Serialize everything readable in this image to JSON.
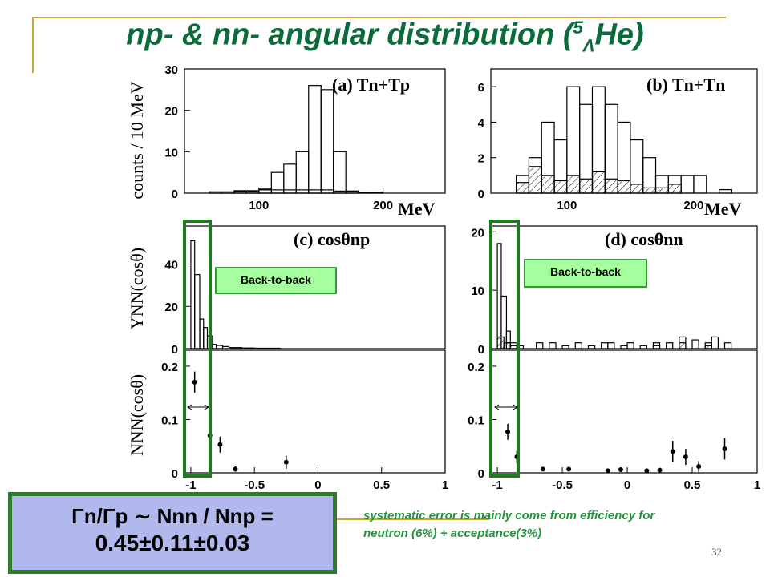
{
  "title": {
    "pre": "np- & nn- angular distribution  (",
    "sup": "5",
    "sub": "Λ",
    "post": "He)"
  },
  "colors": {
    "title": "#0c6b3a",
    "highlight_box": "#1f7a1f",
    "callout_fill": "#a6ff9f",
    "formula_fill": "#b1b8ec",
    "note_text": "#22953a",
    "decoration": "#c9a63a"
  },
  "chart_data": [
    {
      "id": "a",
      "type": "histogram",
      "label": "(a) Tn+Tp",
      "ylabel": "counts / 10 MeV",
      "xlabel": "MeV",
      "xlim": [
        40,
        250
      ],
      "ylim": [
        0,
        30
      ],
      "xticks": [
        100,
        200
      ],
      "yticks": [
        0,
        10,
        20,
        30
      ],
      "series": [
        {
          "bins": [
            [
              60,
              70,
              0.3
            ],
            [
              70,
              80,
              0.3
            ],
            [
              80,
              90,
              0.6
            ],
            [
              90,
              100,
              0.6
            ],
            [
              100,
              110,
              1
            ],
            [
              110,
              120,
              5
            ],
            [
              120,
              130,
              7
            ],
            [
              130,
              140,
              10
            ],
            [
              140,
              150,
              26
            ],
            [
              150,
              160,
              25
            ],
            [
              160,
              170,
              10
            ],
            [
              170,
              180,
              0.5
            ],
            [
              180,
              190,
              0.2
            ],
            [
              190,
              200,
              0.2
            ]
          ],
          "hatched": false
        },
        {
          "bins": [
            [
              60,
              80,
              0.3
            ],
            [
              80,
              100,
              0.5
            ],
            [
              100,
              120,
              0.8
            ],
            [
              120,
              140,
              0.8
            ],
            [
              140,
              160,
              0.8
            ],
            [
              160,
              180,
              0.5
            ]
          ],
          "hatched": false
        }
      ]
    },
    {
      "id": "b",
      "type": "histogram",
      "label": "(b) Tn+Tn",
      "xlabel": "MeV",
      "xlim": [
        40,
        250
      ],
      "ylim": [
        0,
        7
      ],
      "xticks": [
        100,
        200
      ],
      "yticks": [
        0,
        2,
        4,
        6
      ],
      "series": [
        {
          "bins": [
            [
              60,
              70,
              1
            ],
            [
              70,
              80,
              2
            ],
            [
              80,
              90,
              4
            ],
            [
              90,
              100,
              3
            ],
            [
              100,
              110,
              6
            ],
            [
              110,
              120,
              5
            ],
            [
              120,
              130,
              6
            ],
            [
              130,
              140,
              5
            ],
            [
              140,
              150,
              4
            ],
            [
              150,
              160,
              3
            ],
            [
              160,
              170,
              2
            ],
            [
              170,
              180,
              1
            ],
            [
              180,
              190,
              1
            ],
            [
              190,
              200,
              1
            ],
            [
              200,
              210,
              1
            ],
            [
              220,
              230,
              0.2
            ]
          ],
          "hatched": false
        },
        {
          "bins": [
            [
              60,
              70,
              0.6
            ],
            [
              70,
              80,
              1.5
            ],
            [
              80,
              90,
              1
            ],
            [
              90,
              100,
              0.7
            ],
            [
              100,
              110,
              1
            ],
            [
              110,
              120,
              0.8
            ],
            [
              120,
              130,
              1.2
            ],
            [
              130,
              140,
              0.8
            ],
            [
              140,
              150,
              0.7
            ],
            [
              150,
              160,
              0.5
            ],
            [
              160,
              170,
              0.3
            ],
            [
              170,
              180,
              0.3
            ],
            [
              180,
              190,
              0.5
            ]
          ],
          "hatched": true
        }
      ]
    },
    {
      "id": "c",
      "type": "histogram",
      "label": "(c) cosθnp",
      "ylabel": "YNN(cosθ)",
      "xlim": [
        -1.05,
        1
      ],
      "ylim": [
        0,
        58
      ],
      "yticks": [
        0,
        20,
        40
      ],
      "series": [
        {
          "bins": [
            [
              -1.0,
              -0.97,
              51
            ],
            [
              -0.97,
              -0.93,
              35
            ],
            [
              -0.93,
              -0.9,
              14
            ],
            [
              -0.9,
              -0.87,
              10
            ],
            [
              -0.87,
              -0.83,
              6
            ],
            [
              -0.83,
              -0.8,
              2
            ],
            [
              -0.8,
              -0.75,
              1.5
            ],
            [
              -0.75,
              -0.7,
              1
            ],
            [
              -0.7,
              -0.6,
              0.5
            ],
            [
              -0.6,
              -0.5,
              0.3
            ],
            [
              -0.5,
              -0.3,
              0.2
            ]
          ],
          "hatched": false
        }
      ]
    },
    {
      "id": "d",
      "type": "histogram",
      "label": "(d) cosθnn",
      "xlim": [
        -1.05,
        1
      ],
      "ylim": [
        0,
        21
      ],
      "yticks": [
        0,
        10,
        20
      ],
      "series": [
        {
          "bins": [
            [
              -1.0,
              -0.97,
              18
            ],
            [
              -0.97,
              -0.93,
              9
            ],
            [
              -0.93,
              -0.9,
              3
            ],
            [
              -0.9,
              -0.85,
              1
            ],
            [
              -0.85,
              -0.8,
              0.5
            ],
            [
              -0.7,
              -0.65,
              1
            ],
            [
              -0.6,
              -0.55,
              1
            ],
            [
              -0.5,
              -0.45,
              0.5
            ],
            [
              -0.4,
              -0.35,
              1
            ],
            [
              -0.3,
              -0.25,
              0.5
            ],
            [
              -0.2,
              -0.15,
              1
            ],
            [
              -0.15,
              -0.1,
              1
            ],
            [
              -0.05,
              0,
              0.5
            ],
            [
              0,
              0.05,
              1
            ],
            [
              0.1,
              0.15,
              0.5
            ],
            [
              0.2,
              0.25,
              1
            ],
            [
              0.3,
              0.35,
              1
            ],
            [
              0.4,
              0.45,
              2
            ],
            [
              0.5,
              0.55,
              1.5
            ],
            [
              0.6,
              0.65,
              1
            ],
            [
              0.65,
              0.7,
              2
            ],
            [
              0.75,
              0.8,
              1
            ]
          ],
          "hatched": false
        },
        {
          "bins": [
            [
              -1.0,
              -0.95,
              2
            ],
            [
              -0.95,
              -0.9,
              1
            ],
            [
              -0.9,
              -0.85,
              0.5
            ],
            [
              0.2,
              0.25,
              0.5
            ],
            [
              0.4,
              0.45,
              1
            ],
            [
              0.6,
              0.65,
              0.5
            ]
          ],
          "hatched": true
        }
      ]
    },
    {
      "id": "e",
      "type": "scatter",
      "ylabel": "NNN(cosθ)",
      "xlabel": "",
      "xlim": [
        -1.05,
        1
      ],
      "ylim": [
        0,
        0.23
      ],
      "xticks": [
        -1,
        -0.5,
        0,
        0.5,
        1
      ],
      "xticklabels": [
        "-1",
        "-0.5",
        "0",
        "0.5",
        "1"
      ],
      "yticks": [
        0,
        0.1,
        0.2
      ],
      "yticklabels": [
        "0",
        "0.1",
        "0.2"
      ],
      "points": [
        {
          "x": -0.97,
          "y": 0.17,
          "err": 0.02
        },
        {
          "x": -0.85,
          "y": 0.07,
          "err": 0.015
        },
        {
          "x": -0.77,
          "y": 0.053,
          "err": 0.015
        },
        {
          "x": -0.65,
          "y": 0.007,
          "err": 0.005
        },
        {
          "x": -0.25,
          "y": 0.02,
          "err": 0.012
        }
      ]
    },
    {
      "id": "f",
      "type": "scatter",
      "xlim": [
        -1.05,
        1
      ],
      "ylim": [
        0,
        0.23
      ],
      "xticks": [
        -1,
        -0.5,
        0,
        0.5,
        1
      ],
      "xticklabels": [
        "-1",
        "-0.5",
        "0",
        "0.5",
        "1"
      ],
      "yticks": [
        0,
        0.1,
        0.2
      ],
      "yticklabels": [
        "0",
        "0.1",
        "0.2"
      ],
      "points": [
        {
          "x": -0.92,
          "y": 0.077,
          "err": 0.015
        },
        {
          "x": -0.85,
          "y": 0.03,
          "err": 0.012
        },
        {
          "x": -0.65,
          "y": 0.007,
          "err": 0.004
        },
        {
          "x": -0.45,
          "y": 0.007,
          "err": 0.004
        },
        {
          "x": -0.15,
          "y": 0.004,
          "err": 0.004
        },
        {
          "x": -0.05,
          "y": 0.006,
          "err": 0.004
        },
        {
          "x": 0.15,
          "y": 0.004,
          "err": 0.004
        },
        {
          "x": 0.25,
          "y": 0.005,
          "err": 0.004
        },
        {
          "x": 0.35,
          "y": 0.04,
          "err": 0.02
        },
        {
          "x": 0.45,
          "y": 0.03,
          "err": 0.015
        },
        {
          "x": 0.55,
          "y": 0.012,
          "err": 0.01
        },
        {
          "x": 0.75,
          "y": 0.045,
          "err": 0.02
        }
      ]
    }
  ],
  "callouts": [
    "Back-to-back",
    "Back-to-back"
  ],
  "formula": {
    "line1": "Γn/Γp ∼ Nnn / Nnp =",
    "line2": "0.45±0.11±0.03"
  },
  "note": "systematic error is mainly come from efficiency for neutron (6%) + acceptance(3%)",
  "page_number": "32"
}
